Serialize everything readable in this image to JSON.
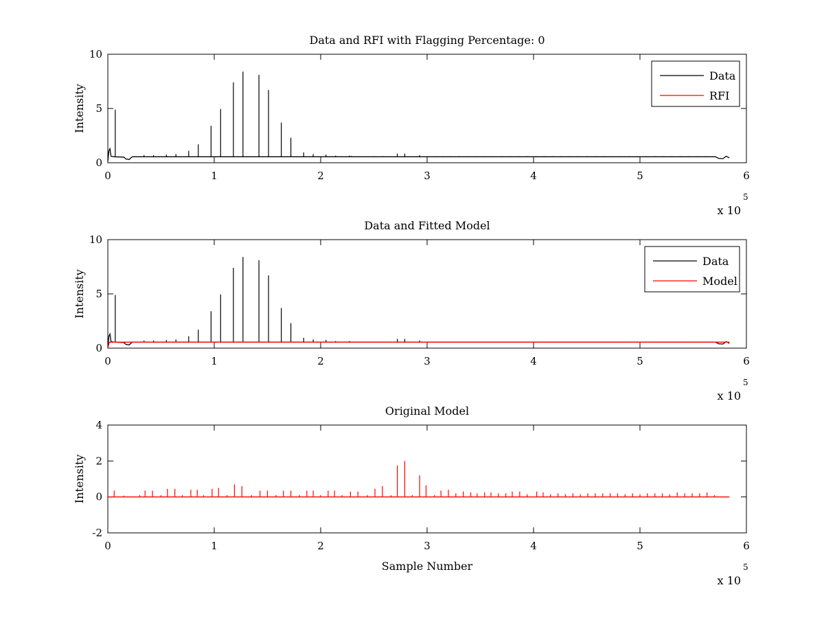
{
  "figure": {
    "background": "#ffffff",
    "axis_color": "#000000"
  },
  "chart_data": [
    {
      "type": "line",
      "title": "Data and RFI with Flagging Percentage: 0",
      "xlabel": "",
      "ylabel": "Intensity",
      "xlim": [
        0,
        6
      ],
      "ylim": [
        0,
        10
      ],
      "xticks": [
        0,
        1,
        2,
        3,
        4,
        5,
        6
      ],
      "yticks": [
        0,
        5,
        10
      ],
      "x_exponent": {
        "base": "x 10",
        "power": "5"
      },
      "legend": {
        "placement": "top-right",
        "entries": [
          {
            "name": "Data",
            "color": "#000000"
          },
          {
            "name": "RFI",
            "color": "#ff0000"
          }
        ]
      },
      "baseline": 0.55,
      "x_end": 5.84,
      "series": [
        {
          "name": "Data",
          "color": "#000000",
          "baseline_points": [
            [
              0,
              0.1
            ],
            [
              0.01,
              1.1
            ],
            [
              0.02,
              1.3
            ],
            [
              0.03,
              0.6
            ],
            [
              0.06,
              0.55
            ],
            [
              0.15,
              0.52
            ],
            [
              0.17,
              0.35
            ],
            [
              0.2,
              0.3
            ],
            [
              0.23,
              0.55
            ],
            [
              5.71,
              0.55
            ],
            [
              5.74,
              0.4
            ],
            [
              5.78,
              0.38
            ],
            [
              5.81,
              0.6
            ],
            [
              5.84,
              0.45
            ]
          ],
          "spikes": [
            [
              0.07,
              4.9
            ],
            [
              0.34,
              0.7
            ],
            [
              0.43,
              0.7
            ],
            [
              0.55,
              0.75
            ],
            [
              0.64,
              0.8
            ],
            [
              0.76,
              1.1
            ],
            [
              0.85,
              1.7
            ],
            [
              0.97,
              3.4
            ],
            [
              1.06,
              4.95
            ],
            [
              1.18,
              7.4
            ],
            [
              1.27,
              8.4
            ],
            [
              1.42,
              8.1
            ],
            [
              1.51,
              6.7
            ],
            [
              1.63,
              3.7
            ],
            [
              1.72,
              2.3
            ],
            [
              1.84,
              0.95
            ],
            [
              1.93,
              0.8
            ],
            [
              2.05,
              0.75
            ],
            [
              2.14,
              0.65
            ],
            [
              2.27,
              0.65
            ],
            [
              2.36,
              0.6
            ],
            [
              2.5,
              0.6
            ],
            [
              2.59,
              0.6
            ],
            [
              2.72,
              0.85
            ],
            [
              2.79,
              0.85
            ],
            [
              2.93,
              0.7
            ],
            [
              3.0,
              0.6
            ],
            [
              3.09,
              0.6
            ],
            [
              3.15,
              0.6
            ],
            [
              3.22,
              0.6
            ],
            [
              3.3,
              0.6
            ],
            [
              3.38,
              0.6
            ],
            [
              3.46,
              0.6
            ],
            [
              3.54,
              0.6
            ],
            [
              3.62,
              0.6
            ],
            [
              3.7,
              0.6
            ],
            [
              3.78,
              0.6
            ],
            [
              3.86,
              0.6
            ],
            [
              3.94,
              0.6
            ],
            [
              4.02,
              0.6
            ],
            [
              4.1,
              0.6
            ],
            [
              4.18,
              0.6
            ],
            [
              4.26,
              0.6
            ],
            [
              4.34,
              0.6
            ],
            [
              4.42,
              0.6
            ],
            [
              4.5,
              0.6
            ],
            [
              4.58,
              0.6
            ],
            [
              4.66,
              0.6
            ],
            [
              4.74,
              0.6
            ],
            [
              4.82,
              0.6
            ],
            [
              4.9,
              0.6
            ],
            [
              4.98,
              0.6
            ],
            [
              5.06,
              0.6
            ],
            [
              5.14,
              0.6
            ],
            [
              5.22,
              0.6
            ],
            [
              5.3,
              0.6
            ],
            [
              5.38,
              0.6
            ],
            [
              5.46,
              0.6
            ],
            [
              5.54,
              0.6
            ],
            [
              5.62,
              0.6
            ]
          ]
        },
        {
          "name": "RFI",
          "color": "#ff0000",
          "baseline_points": [],
          "spikes": [
            [
              2.29,
              0.65
            ]
          ]
        }
      ]
    },
    {
      "type": "line",
      "title": "Data and Fitted Model",
      "xlabel": "",
      "ylabel": "Intensity",
      "xlim": [
        0,
        6
      ],
      "ylim": [
        0,
        10
      ],
      "xticks": [
        0,
        1,
        2,
        3,
        4,
        5,
        6
      ],
      "yticks": [
        0,
        5,
        10
      ],
      "x_exponent": {
        "base": "x 10",
        "power": "5"
      },
      "legend": {
        "placement": "top-right",
        "entries": [
          {
            "name": "Data",
            "color": "#000000"
          },
          {
            "name": "Model",
            "color": "#ff0000"
          }
        ]
      },
      "baseline": 0.55,
      "x_end": 5.84,
      "series": [
        {
          "name": "Data",
          "color": "#000000",
          "baseline_points": [
            [
              0,
              0.1
            ],
            [
              0.01,
              1.1
            ],
            [
              0.02,
              1.3
            ],
            [
              0.03,
              0.6
            ],
            [
              0.06,
              0.55
            ],
            [
              0.15,
              0.52
            ],
            [
              0.17,
              0.35
            ],
            [
              0.2,
              0.3
            ],
            [
              0.23,
              0.55
            ],
            [
              5.71,
              0.55
            ],
            [
              5.74,
              0.4
            ],
            [
              5.78,
              0.38
            ],
            [
              5.81,
              0.6
            ],
            [
              5.84,
              0.45
            ]
          ],
          "spikes": [
            [
              0.07,
              4.9
            ],
            [
              0.34,
              0.7
            ],
            [
              0.43,
              0.7
            ],
            [
              0.55,
              0.75
            ],
            [
              0.64,
              0.8
            ],
            [
              0.76,
              1.1
            ],
            [
              0.85,
              1.7
            ],
            [
              0.97,
              3.4
            ],
            [
              1.06,
              4.95
            ],
            [
              1.18,
              7.4
            ],
            [
              1.27,
              8.4
            ],
            [
              1.42,
              8.1
            ],
            [
              1.51,
              6.7
            ],
            [
              1.63,
              3.7
            ],
            [
              1.72,
              2.3
            ],
            [
              1.84,
              0.95
            ],
            [
              1.93,
              0.8
            ],
            [
              2.05,
              0.75
            ],
            [
              2.14,
              0.65
            ],
            [
              2.27,
              0.65
            ],
            [
              2.36,
              0.6
            ],
            [
              2.5,
              0.6
            ],
            [
              2.59,
              0.6
            ],
            [
              2.72,
              0.85
            ],
            [
              2.79,
              0.85
            ],
            [
              2.93,
              0.7
            ],
            [
              3.0,
              0.6
            ],
            [
              3.09,
              0.6
            ],
            [
              3.15,
              0.6
            ],
            [
              3.22,
              0.6
            ],
            [
              3.3,
              0.6
            ],
            [
              3.38,
              0.6
            ],
            [
              3.46,
              0.6
            ],
            [
              3.54,
              0.6
            ],
            [
              3.62,
              0.6
            ],
            [
              3.7,
              0.6
            ],
            [
              3.78,
              0.6
            ],
            [
              3.86,
              0.6
            ],
            [
              3.94,
              0.6
            ],
            [
              4.02,
              0.6
            ],
            [
              4.1,
              0.6
            ],
            [
              4.18,
              0.6
            ],
            [
              4.26,
              0.6
            ],
            [
              4.34,
              0.6
            ],
            [
              4.42,
              0.6
            ],
            [
              4.5,
              0.6
            ],
            [
              4.58,
              0.6
            ],
            [
              4.66,
              0.6
            ],
            [
              4.74,
              0.6
            ],
            [
              4.82,
              0.6
            ],
            [
              4.9,
              0.6
            ],
            [
              4.98,
              0.6
            ],
            [
              5.06,
              0.6
            ],
            [
              5.14,
              0.6
            ],
            [
              5.22,
              0.6
            ],
            [
              5.3,
              0.6
            ],
            [
              5.38,
              0.6
            ],
            [
              5.46,
              0.6
            ],
            [
              5.54,
              0.6
            ],
            [
              5.62,
              0.6
            ]
          ]
        },
        {
          "name": "Model",
          "color": "#ff0000",
          "baseline_points": [
            [
              0,
              0
            ],
            [
              0.015,
              0.55
            ],
            [
              5.84,
              0.55
            ]
          ],
          "spikes": []
        }
      ]
    },
    {
      "type": "line",
      "title": "Original Model",
      "xlabel": "Sample Number",
      "ylabel": "Intensity",
      "xlim": [
        0,
        6
      ],
      "ylim": [
        -2,
        4
      ],
      "xticks": [
        0,
        1,
        2,
        3,
        4,
        5,
        6
      ],
      "yticks": [
        -2,
        0,
        2,
        4
      ],
      "x_exponent": {
        "base": "x 10",
        "power": "5"
      },
      "legend": null,
      "baseline": 0,
      "x_end": 5.84,
      "series": [
        {
          "name": "",
          "color": "#ff0000",
          "baseline_points": [
            [
              0,
              0
            ],
            [
              5.84,
              0
            ]
          ],
          "spikes": [
            [
              0.06,
              0.35
            ],
            [
              0.15,
              0.08
            ],
            [
              0.3,
              0.1
            ],
            [
              0.35,
              0.35
            ],
            [
              0.42,
              0.35
            ],
            [
              0.5,
              0.1
            ],
            [
              0.56,
              0.45
            ],
            [
              0.63,
              0.45
            ],
            [
              0.7,
              0.1
            ],
            [
              0.78,
              0.4
            ],
            [
              0.84,
              0.4
            ],
            [
              0.9,
              0.1
            ],
            [
              0.98,
              0.45
            ],
            [
              1.04,
              0.5
            ],
            [
              1.12,
              0.1
            ],
            [
              1.19,
              0.7
            ],
            [
              1.26,
              0.6
            ],
            [
              1.35,
              0.1
            ],
            [
              1.43,
              0.35
            ],
            [
              1.5,
              0.35
            ],
            [
              1.58,
              0.1
            ],
            [
              1.65,
              0.35
            ],
            [
              1.72,
              0.35
            ],
            [
              1.8,
              0.1
            ],
            [
              1.87,
              0.35
            ],
            [
              1.93,
              0.35
            ],
            [
              2.0,
              0.1
            ],
            [
              2.07,
              0.35
            ],
            [
              2.13,
              0.35
            ],
            [
              2.2,
              0.1
            ],
            [
              2.28,
              0.3
            ],
            [
              2.35,
              0.3
            ],
            [
              2.44,
              0.1
            ],
            [
              2.51,
              0.45
            ],
            [
              2.58,
              0.6
            ],
            [
              2.66,
              0.1
            ],
            [
              2.72,
              1.75
            ],
            [
              2.79,
              2.0
            ],
            [
              2.86,
              0.1
            ],
            [
              2.93,
              1.2
            ],
            [
              2.99,
              0.65
            ],
            [
              3.07,
              0.1
            ],
            [
              3.13,
              0.35
            ],
            [
              3.2,
              0.4
            ],
            [
              3.27,
              0.2
            ],
            [
              3.34,
              0.3
            ],
            [
              3.41,
              0.25
            ],
            [
              3.47,
              0.2
            ],
            [
              3.54,
              0.25
            ],
            [
              3.6,
              0.25
            ],
            [
              3.67,
              0.2
            ],
            [
              3.74,
              0.2
            ],
            [
              3.8,
              0.3
            ],
            [
              3.87,
              0.3
            ],
            [
              3.94,
              0.15
            ],
            [
              4.03,
              0.3
            ],
            [
              4.09,
              0.25
            ],
            [
              4.16,
              0.15
            ],
            [
              4.23,
              0.2
            ],
            [
              4.3,
              0.15
            ],
            [
              4.37,
              0.2
            ],
            [
              4.44,
              0.15
            ],
            [
              4.51,
              0.2
            ],
            [
              4.58,
              0.2
            ],
            [
              4.65,
              0.2
            ],
            [
              4.72,
              0.2
            ],
            [
              4.79,
              0.2
            ],
            [
              4.86,
              0.15
            ],
            [
              4.93,
              0.2
            ],
            [
              5.0,
              0.15
            ],
            [
              5.07,
              0.2
            ],
            [
              5.14,
              0.2
            ],
            [
              5.21,
              0.2
            ],
            [
              5.28,
              0.15
            ],
            [
              5.35,
              0.25
            ],
            [
              5.42,
              0.2
            ],
            [
              5.49,
              0.2
            ],
            [
              5.56,
              0.2
            ],
            [
              5.63,
              0.25
            ],
            [
              5.7,
              0.1
            ]
          ]
        }
      ]
    }
  ]
}
